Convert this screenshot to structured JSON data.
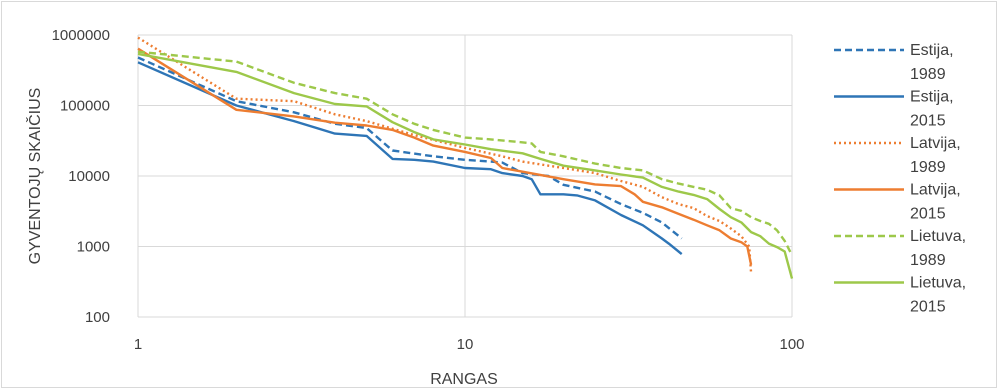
{
  "chart_data": {
    "type": "line",
    "title": "",
    "xlabel": "RANGAS",
    "ylabel": "GYVENTOJŲ SKAIČIUS",
    "x_scale": "log",
    "y_scale": "log",
    "xlim": [
      1,
      100
    ],
    "ylim": [
      100,
      1000000
    ],
    "x_ticks": [
      1,
      10,
      100
    ],
    "x_tick_labels": [
      "1",
      "10",
      "100"
    ],
    "y_ticks": [
      100,
      1000,
      10000,
      100000,
      1000000
    ],
    "y_tick_labels": [
      "100",
      "1000",
      "10000",
      "100000",
      "1000000"
    ],
    "grid": true,
    "legend_position": "right",
    "series": [
      {
        "name": "Estija, 1989",
        "name_lines": [
          "Estija,",
          "1989"
        ],
        "color": "#2e75b6",
        "dash": "dashed",
        "points": [
          [
            1,
            480000
          ],
          [
            2,
            115000
          ],
          [
            3,
            80000
          ],
          [
            4,
            55000
          ],
          [
            5,
            48000
          ],
          [
            6,
            23000
          ],
          [
            8,
            19000
          ],
          [
            10,
            17000
          ],
          [
            12,
            16000
          ],
          [
            13,
            15500
          ],
          [
            15,
            11000
          ],
          [
            18,
            10000
          ],
          [
            20,
            7500
          ],
          [
            25,
            6000
          ],
          [
            30,
            4000
          ],
          [
            35,
            3000
          ],
          [
            40,
            2200
          ],
          [
            46,
            1300
          ]
        ]
      },
      {
        "name": "Estija, 2015",
        "name_lines": [
          "Estija,",
          "2015"
        ],
        "color": "#2e75b6",
        "dash": "solid",
        "points": [
          [
            1,
            410000
          ],
          [
            2,
            100000
          ],
          [
            3,
            60000
          ],
          [
            4,
            40000
          ],
          [
            5,
            37000
          ],
          [
            6,
            17500
          ],
          [
            7,
            17000
          ],
          [
            8,
            16000
          ],
          [
            10,
            13000
          ],
          [
            12,
            12500
          ],
          [
            13,
            11000
          ],
          [
            15,
            10000
          ],
          [
            16,
            9000
          ],
          [
            17,
            5500
          ],
          [
            20,
            5500
          ],
          [
            22,
            5300
          ],
          [
            25,
            4500
          ],
          [
            30,
            2800
          ],
          [
            35,
            2000
          ],
          [
            40,
            1300
          ],
          [
            42,
            1100
          ],
          [
            46,
            780
          ]
        ]
      },
      {
        "name": "Latvija, 1989",
        "name_lines": [
          "Latvija,",
          "1989"
        ],
        "color": "#ed7d31",
        "dash": "dotted",
        "points": [
          [
            1,
            920000
          ],
          [
            2,
            125000
          ],
          [
            3,
            115000
          ],
          [
            4,
            75000
          ],
          [
            5,
            60000
          ],
          [
            7,
            38000
          ],
          [
            10,
            25000
          ],
          [
            13,
            19000
          ],
          [
            15,
            16000
          ],
          [
            20,
            13000
          ],
          [
            25,
            11000
          ],
          [
            30,
            8500
          ],
          [
            35,
            7000
          ],
          [
            40,
            5000
          ],
          [
            45,
            4000
          ],
          [
            50,
            3500
          ],
          [
            55,
            2700
          ],
          [
            60,
            2300
          ],
          [
            65,
            1800
          ],
          [
            70,
            1400
          ],
          [
            74,
            1000
          ],
          [
            75,
            420
          ]
        ]
      },
      {
        "name": "Latvija, 2015",
        "name_lines": [
          "Latvija,",
          "2015"
        ],
        "color": "#ed7d31",
        "dash": "solid",
        "points": [
          [
            1,
            640000
          ],
          [
            2,
            87000
          ],
          [
            3,
            70000
          ],
          [
            4,
            57000
          ],
          [
            5,
            52000
          ],
          [
            6,
            45000
          ],
          [
            7,
            35000
          ],
          [
            8,
            27000
          ],
          [
            10,
            22000
          ],
          [
            12,
            18000
          ],
          [
            13,
            13000
          ],
          [
            15,
            11500
          ],
          [
            20,
            9000
          ],
          [
            25,
            7600
          ],
          [
            30,
            7200
          ],
          [
            33,
            5500
          ],
          [
            35,
            4300
          ],
          [
            40,
            3600
          ],
          [
            45,
            2900
          ],
          [
            50,
            2400
          ],
          [
            55,
            2000
          ],
          [
            60,
            1700
          ],
          [
            65,
            1300
          ],
          [
            70,
            1150
          ],
          [
            73,
            1000
          ],
          [
            75,
            550
          ]
        ]
      },
      {
        "name": "Lietuva, 1989",
        "name_lines": [
          "Lietuva,",
          "1989"
        ],
        "color": "#9dc84a",
        "dash": "dashed",
        "points": [
          [
            1,
            580000
          ],
          [
            2,
            420000
          ],
          [
            3,
            210000
          ],
          [
            4,
            150000
          ],
          [
            5,
            125000
          ],
          [
            6,
            75000
          ],
          [
            7,
            55000
          ],
          [
            8,
            45000
          ],
          [
            10,
            35000
          ],
          [
            12,
            33000
          ],
          [
            14,
            31000
          ],
          [
            16,
            29000
          ],
          [
            17,
            22000
          ],
          [
            20,
            19000
          ],
          [
            25,
            15000
          ],
          [
            30,
            13000
          ],
          [
            35,
            12000
          ],
          [
            40,
            9000
          ],
          [
            45,
            7800
          ],
          [
            50,
            7000
          ],
          [
            55,
            6400
          ],
          [
            60,
            5300
          ],
          [
            65,
            3500
          ],
          [
            70,
            3200
          ],
          [
            75,
            2600
          ],
          [
            80,
            2300
          ],
          [
            85,
            2100
          ],
          [
            90,
            1700
          ],
          [
            95,
            1200
          ],
          [
            100,
            750
          ]
        ]
      },
      {
        "name": "Lietuva, 2015",
        "name_lines": [
          "Lietuva,",
          "2015"
        ],
        "color": "#9dc84a",
        "dash": "solid",
        "points": [
          [
            1,
            540000
          ],
          [
            2,
            300000
          ],
          [
            3,
            150000
          ],
          [
            4,
            105000
          ],
          [
            5,
            97000
          ],
          [
            6,
            58000
          ],
          [
            7,
            42000
          ],
          [
            8,
            33000
          ],
          [
            10,
            28000
          ],
          [
            12,
            24000
          ],
          [
            15,
            21000
          ],
          [
            17,
            17500
          ],
          [
            20,
            14000
          ],
          [
            25,
            12000
          ],
          [
            30,
            10500
          ],
          [
            35,
            9500
          ],
          [
            40,
            7000
          ],
          [
            45,
            6000
          ],
          [
            50,
            5400
          ],
          [
            55,
            4700
          ],
          [
            60,
            3400
          ],
          [
            65,
            2600
          ],
          [
            70,
            2200
          ],
          [
            75,
            1600
          ],
          [
            80,
            1400
          ],
          [
            85,
            1100
          ],
          [
            90,
            980
          ],
          [
            95,
            850
          ],
          [
            100,
            350
          ]
        ]
      }
    ]
  }
}
